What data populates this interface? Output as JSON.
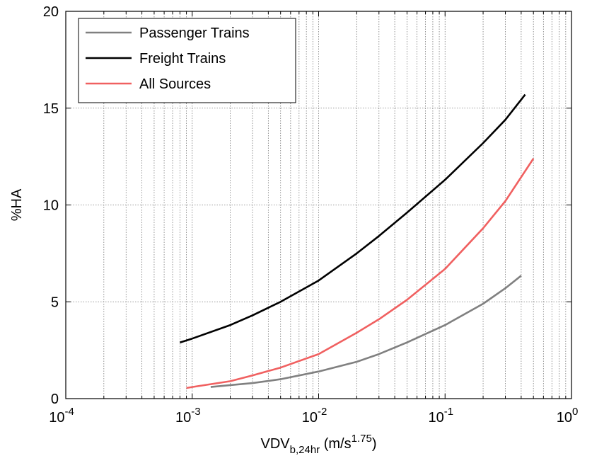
{
  "chart_data": {
    "type": "line",
    "title": "",
    "xlabel": {
      "base": "VDV",
      "subscript": "b,24hr",
      "units_prefix": " (m/s",
      "units_exponent": "1.75",
      "units_suffix": ")"
    },
    "ylabel": "%HA",
    "xscale": "log",
    "xlim": [
      0.0001,
      1
    ],
    "ylim": [
      0,
      20
    ],
    "x_ticks": [
      {
        "base": "10",
        "exp": "-4",
        "value": 0.0001
      },
      {
        "base": "10",
        "exp": "-3",
        "value": 0.001
      },
      {
        "base": "10",
        "exp": "-2",
        "value": 0.01
      },
      {
        "base": "10",
        "exp": "-1",
        "value": 0.1
      },
      {
        "base": "10",
        "exp": "0",
        "value": 1
      }
    ],
    "y_ticks": [
      {
        "label": "0",
        "value": 0
      },
      {
        "label": "5",
        "value": 5
      },
      {
        "label": "10",
        "value": 10
      },
      {
        "label": "15",
        "value": 15
      },
      {
        "label": "20",
        "value": 20
      }
    ],
    "grid": true,
    "legend_position": "top-left",
    "series": [
      {
        "name": "Passenger Trains",
        "color": "#808080",
        "x": [
          0.0014,
          0.002,
          0.003,
          0.005,
          0.01,
          0.02,
          0.03,
          0.05,
          0.1,
          0.2,
          0.3,
          0.4
        ],
        "y": [
          0.6,
          0.7,
          0.8,
          1.0,
          1.4,
          1.9,
          2.3,
          2.9,
          3.8,
          4.9,
          5.7,
          6.35
        ]
      },
      {
        "name": "Freight Trains",
        "color": "#000000",
        "x": [
          0.0008,
          0.001,
          0.002,
          0.003,
          0.005,
          0.01,
          0.02,
          0.03,
          0.05,
          0.1,
          0.2,
          0.3,
          0.43
        ],
        "y": [
          2.9,
          3.1,
          3.8,
          4.3,
          5.0,
          6.1,
          7.5,
          8.4,
          9.6,
          11.3,
          13.2,
          14.4,
          15.7
        ]
      },
      {
        "name": "All Sources",
        "color": "#f06060",
        "x": [
          0.0009,
          0.001,
          0.002,
          0.003,
          0.005,
          0.01,
          0.02,
          0.03,
          0.05,
          0.1,
          0.2,
          0.3,
          0.5
        ],
        "y": [
          0.55,
          0.6,
          0.9,
          1.2,
          1.6,
          2.3,
          3.4,
          4.1,
          5.1,
          6.7,
          8.8,
          10.2,
          12.4
        ]
      }
    ]
  }
}
